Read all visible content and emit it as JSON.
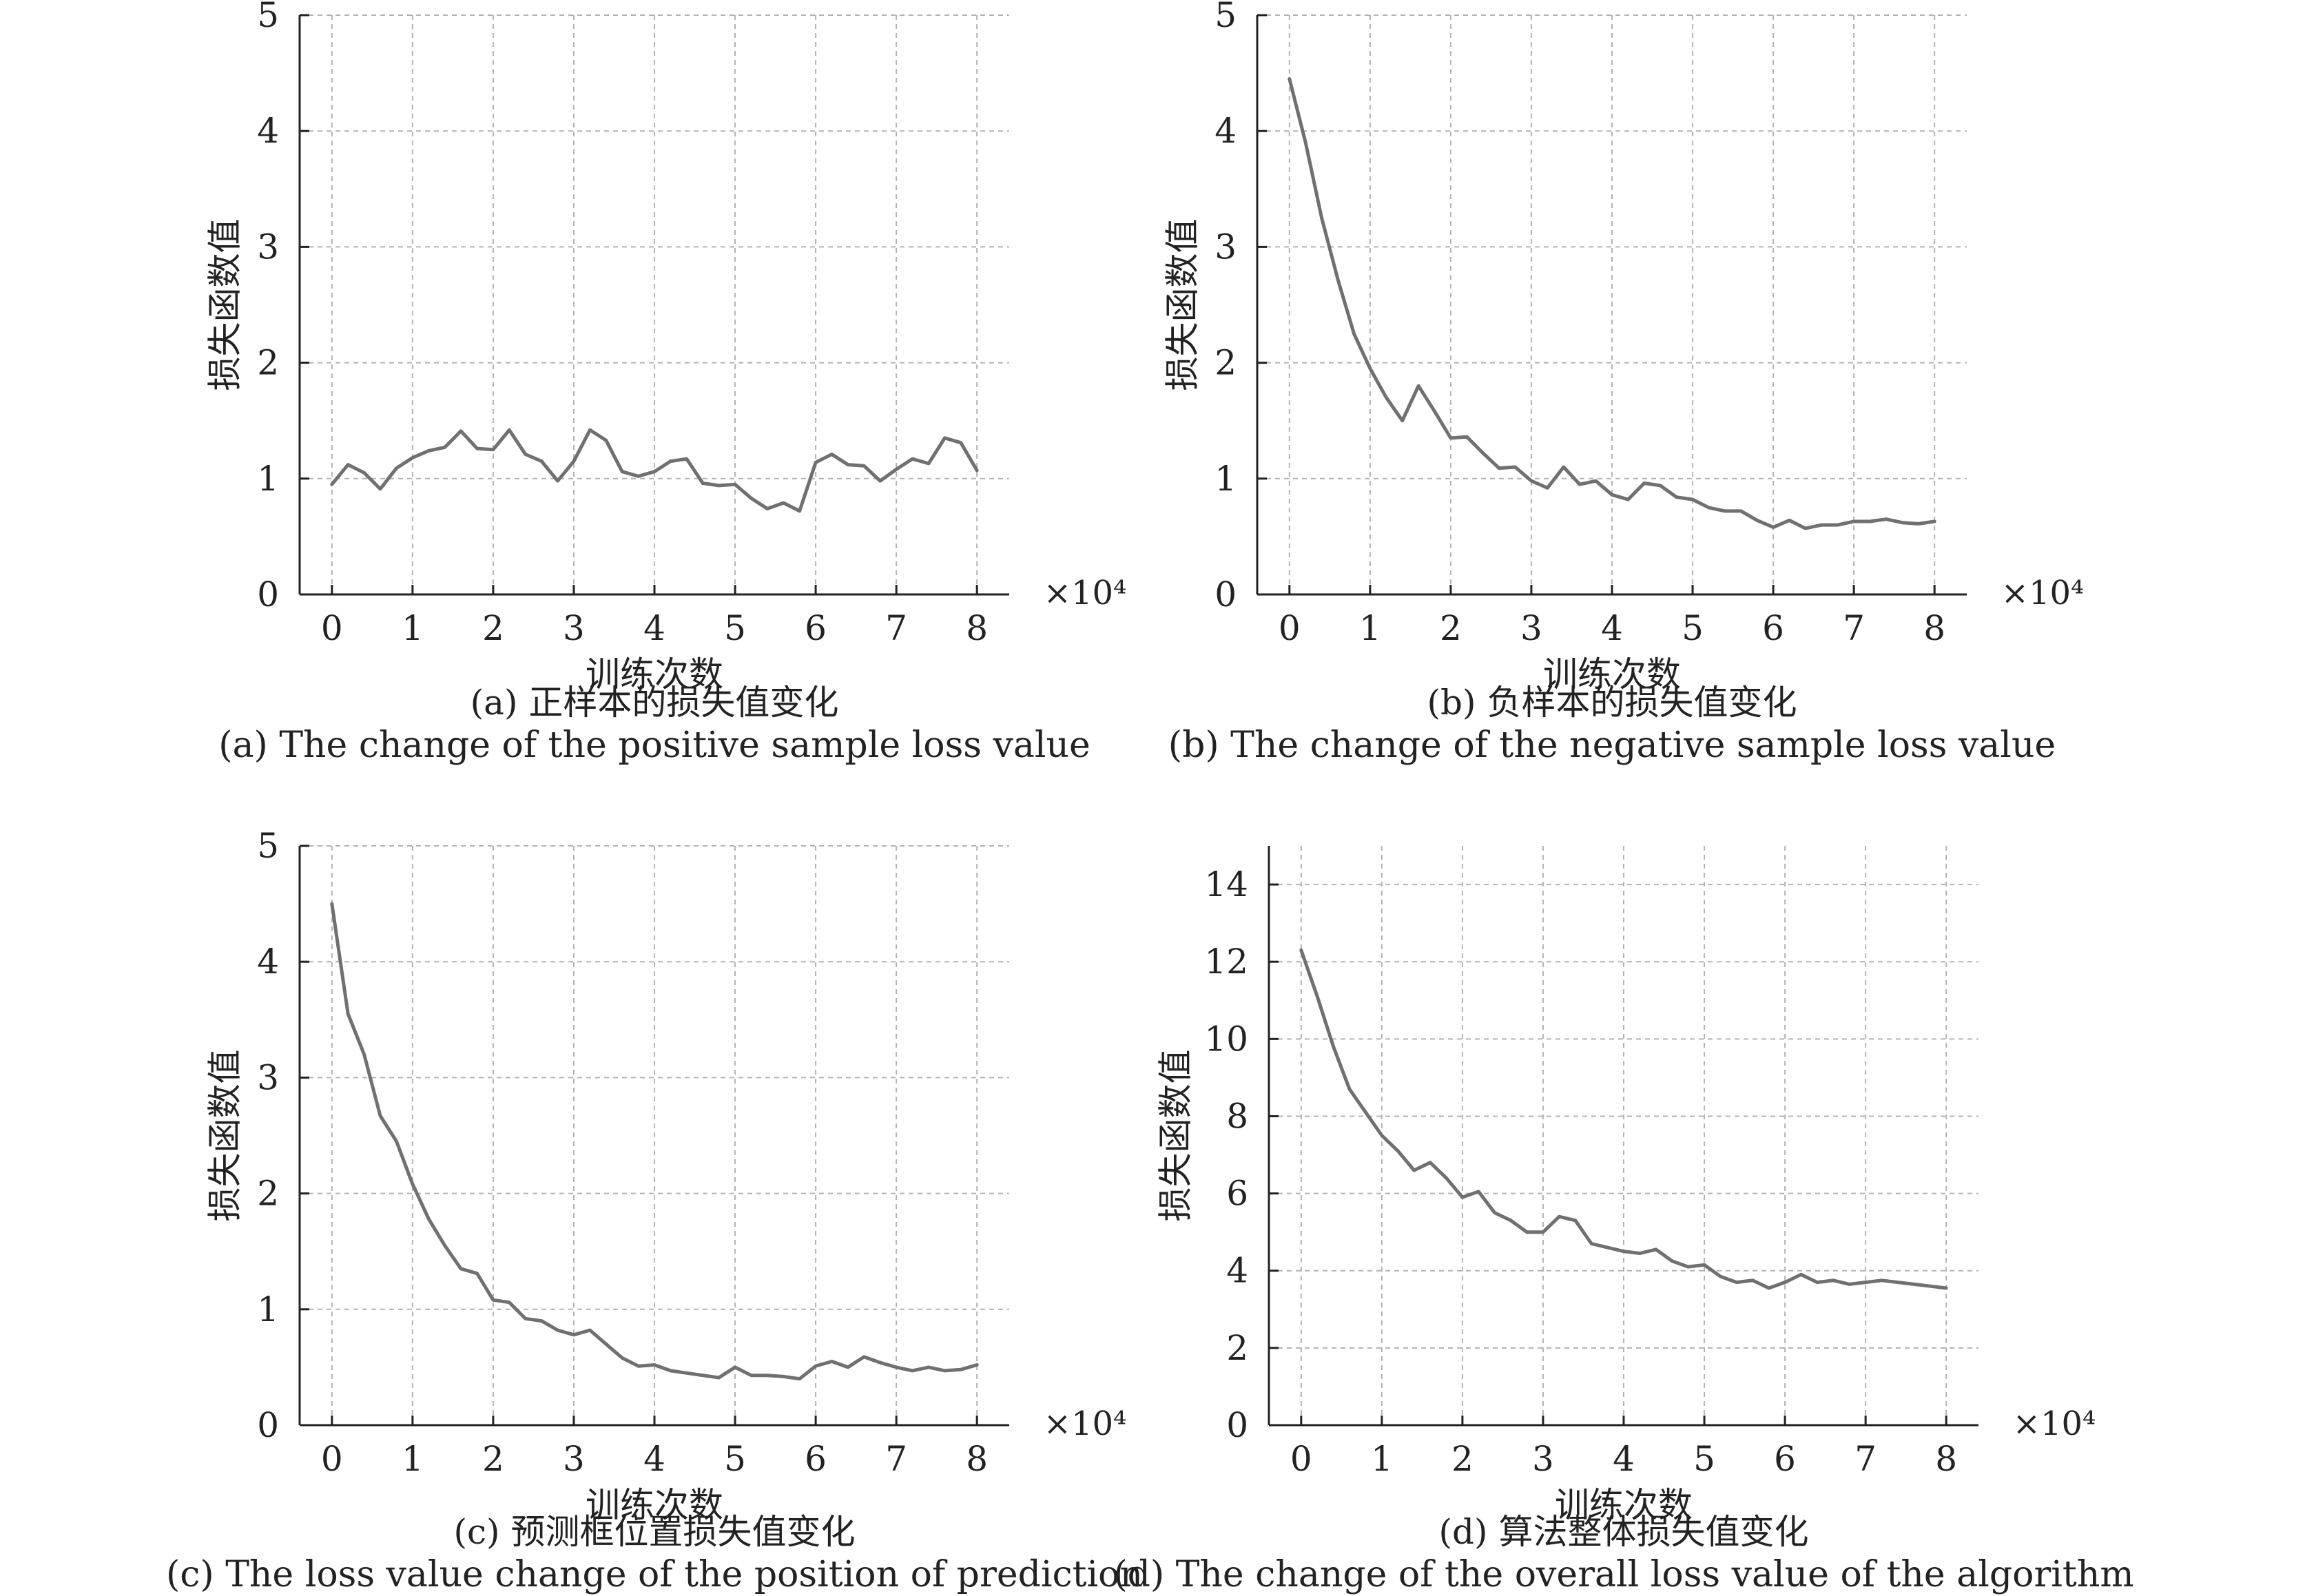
{
  "chart_data": [
    {
      "type": "line",
      "ylabel": "损失函数值",
      "xlabel": "训练次数",
      "x_multiplier": "×10⁴",
      "caption_zh": "(a) 正样本的损失值变化",
      "caption_en": "(a) The change of the positive sample loss value",
      "xlim": [
        -0.4,
        8.4
      ],
      "ylim": [
        0,
        5
      ],
      "xticks": [
        0,
        1,
        2,
        3,
        4,
        5,
        6,
        7,
        8
      ],
      "yticks": [
        0,
        1,
        2,
        3,
        4,
        5
      ],
      "grid": true,
      "line_color": "#707070",
      "x": [
        0,
        0.2,
        0.4,
        0.6,
        0.8,
        1.0,
        1.2,
        1.4,
        1.6,
        1.8,
        2.0,
        2.2,
        2.4,
        2.6,
        2.8,
        3.0,
        3.2,
        3.4,
        3.6,
        3.8,
        4.0,
        4.2,
        4.4,
        4.6,
        4.8,
        5.0,
        5.2,
        5.4,
        5.6,
        5.8,
        6.0,
        6.2,
        6.4,
        6.6,
        6.8,
        7.0,
        7.2,
        7.4,
        7.6,
        7.8,
        8.0
      ],
      "y": [
        0.95,
        1.12,
        1.05,
        0.91,
        1.09,
        1.18,
        1.24,
        1.27,
        1.41,
        1.26,
        1.25,
        1.42,
        1.21,
        1.15,
        0.98,
        1.15,
        1.42,
        1.33,
        1.06,
        1.02,
        1.06,
        1.15,
        1.17,
        0.96,
        0.94,
        0.95,
        0.83,
        0.74,
        0.79,
        0.72,
        1.14,
        1.21,
        1.12,
        1.11,
        0.98,
        1.08,
        1.17,
        1.13,
        1.35,
        1.31,
        1.07
      ]
    },
    {
      "type": "line",
      "ylabel": "损失函数值",
      "xlabel": "训练次数",
      "x_multiplier": "×10⁴",
      "caption_zh": "(b) 负样本的损失值变化",
      "caption_en": "(b) The change of the negative sample loss value",
      "xlim": [
        -0.4,
        8.4
      ],
      "ylim": [
        0,
        5
      ],
      "xticks": [
        0,
        1,
        2,
        3,
        4,
        5,
        6,
        7,
        8
      ],
      "yticks": [
        0,
        1,
        2,
        3,
        4,
        5
      ],
      "grid": true,
      "line_color": "#707070",
      "x": [
        0,
        0.2,
        0.4,
        0.6,
        0.8,
        1.0,
        1.2,
        1.4,
        1.6,
        1.8,
        2.0,
        2.2,
        2.4,
        2.6,
        2.8,
        3.0,
        3.2,
        3.4,
        3.6,
        3.8,
        4.0,
        4.2,
        4.4,
        4.6,
        4.8,
        5.0,
        5.2,
        5.4,
        5.6,
        5.8,
        6.0,
        6.2,
        6.4,
        6.6,
        6.8,
        7.0,
        7.2,
        7.4,
        7.6,
        7.8,
        8.0
      ],
      "y": [
        4.45,
        3.9,
        3.25,
        2.72,
        2.25,
        1.95,
        1.7,
        1.5,
        1.8,
        1.58,
        1.35,
        1.36,
        1.22,
        1.09,
        1.1,
        0.98,
        0.92,
        1.1,
        0.95,
        0.98,
        0.86,
        0.82,
        0.96,
        0.94,
        0.84,
        0.82,
        0.75,
        0.72,
        0.72,
        0.64,
        0.58,
        0.64,
        0.57,
        0.6,
        0.6,
        0.63,
        0.63,
        0.65,
        0.62,
        0.61,
        0.63
      ]
    },
    {
      "type": "line",
      "ylabel": "损失函数值",
      "xlabel": "训练次数",
      "x_multiplier": "×10⁴",
      "caption_zh": "(c) 预测框位置损失值变化",
      "caption_en": "(c) The loss value change of the position of prediction",
      "xlim": [
        -0.4,
        8.4
      ],
      "ylim": [
        0,
        5
      ],
      "xticks": [
        0,
        1,
        2,
        3,
        4,
        5,
        6,
        7,
        8
      ],
      "yticks": [
        0,
        1,
        2,
        3,
        4,
        5
      ],
      "grid": true,
      "line_color": "#707070",
      "x": [
        0,
        0.2,
        0.4,
        0.6,
        0.8,
        1.0,
        1.2,
        1.4,
        1.6,
        1.8,
        2.0,
        2.2,
        2.4,
        2.6,
        2.8,
        3.0,
        3.2,
        3.4,
        3.6,
        3.8,
        4.0,
        4.2,
        4.4,
        4.6,
        4.8,
        5.0,
        5.2,
        5.4,
        5.6,
        5.8,
        6.0,
        6.2,
        6.4,
        6.6,
        6.8,
        7.0,
        7.2,
        7.4,
        7.6,
        7.8,
        8.0
      ],
      "y": [
        4.5,
        3.55,
        3.2,
        2.67,
        2.45,
        2.08,
        1.78,
        1.55,
        1.35,
        1.31,
        1.08,
        1.06,
        0.92,
        0.9,
        0.82,
        0.78,
        0.82,
        0.7,
        0.58,
        0.51,
        0.52,
        0.47,
        0.45,
        0.43,
        0.41,
        0.5,
        0.43,
        0.43,
        0.42,
        0.4,
        0.51,
        0.55,
        0.5,
        0.59,
        0.54,
        0.5,
        0.47,
        0.5,
        0.47,
        0.48,
        0.52
      ]
    },
    {
      "type": "line",
      "ylabel": "损失函数值",
      "xlabel": "训练次数",
      "x_multiplier": "×10⁴",
      "caption_zh": "(d) 算法整体损失值变化",
      "caption_en": "(d) The change of the overall loss value of the algorithm",
      "xlim": [
        -0.4,
        8.4
      ],
      "ylim": [
        0,
        15
      ],
      "xticks": [
        0,
        1,
        2,
        3,
        4,
        5,
        6,
        7,
        8
      ],
      "yticks": [
        0,
        2,
        4,
        6,
        8,
        10,
        12,
        14
      ],
      "grid": true,
      "line_color": "#707070",
      "x": [
        0,
        0.2,
        0.4,
        0.6,
        0.8,
        1.0,
        1.2,
        1.4,
        1.6,
        1.8,
        2.0,
        2.2,
        2.4,
        2.6,
        2.8,
        3.0,
        3.2,
        3.4,
        3.6,
        3.8,
        4.0,
        4.2,
        4.4,
        4.6,
        4.8,
        5.0,
        5.2,
        5.4,
        5.6,
        5.8,
        6.0,
        6.2,
        6.4,
        6.6,
        6.8,
        7.0,
        7.2,
        7.4,
        7.6,
        7.8,
        8.0
      ],
      "y": [
        12.3,
        11.1,
        9.8,
        8.7,
        8.1,
        7.5,
        7.1,
        6.6,
        6.8,
        6.4,
        5.9,
        6.05,
        5.5,
        5.3,
        5.0,
        5.0,
        5.4,
        5.3,
        4.7,
        4.6,
        4.5,
        4.45,
        4.55,
        4.25,
        4.1,
        4.15,
        3.85,
        3.7,
        3.75,
        3.55,
        3.7,
        3.9,
        3.7,
        3.75,
        3.65,
        3.7,
        3.75,
        3.7,
        3.65,
        3.6,
        3.55
      ]
    }
  ]
}
